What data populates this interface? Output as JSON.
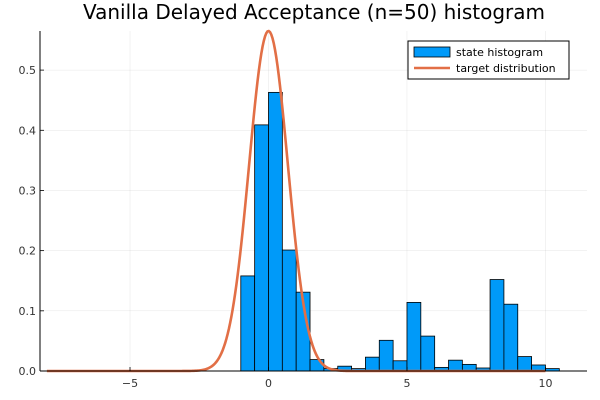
{
  "chart_data": {
    "type": "bar",
    "title": "Vanilla Delayed Acceptance (n=50) histogram",
    "xlabel": "",
    "ylabel": "",
    "xlim": [
      -8.25,
      11.5
    ],
    "ylim": [
      0,
      0.565
    ],
    "x_ticks": [
      -5,
      0,
      5,
      10
    ],
    "y_ticks": [
      0.0,
      0.1,
      0.2,
      0.3,
      0.4,
      0.5
    ],
    "x_tick_labels": [
      "−5",
      "0",
      "5",
      "10"
    ],
    "y_tick_labels": [
      "0.0",
      "0.1",
      "0.2",
      "0.3",
      "0.4",
      "0.5"
    ],
    "grid": true,
    "legend_position": "top-right",
    "series": [
      {
        "name": "state histogram",
        "type": "histogram",
        "color": "#009af9",
        "bin_width": 0.5,
        "bin_starts": [
          -1.0,
          -0.5,
          0.0,
          0.5,
          1.0,
          1.5,
          2.0,
          2.5,
          3.0,
          3.5,
          4.0,
          4.5,
          5.0,
          5.5,
          6.0,
          6.5,
          7.0,
          7.5,
          8.0,
          8.5,
          9.0,
          9.5,
          10.0
        ],
        "values": [
          0.158,
          0.409,
          0.463,
          0.201,
          0.131,
          0.019,
          0.004,
          0.008,
          0.004,
          0.023,
          0.051,
          0.017,
          0.114,
          0.058,
          0.006,
          0.018,
          0.011,
          0.005,
          0.152,
          0.111,
          0.024,
          0.01,
          0.004
        ]
      },
      {
        "name": "target distribution",
        "type": "line",
        "color": "#e26f46",
        "curve": "normal",
        "mean": 0,
        "std": 0.7,
        "peak": 0.565,
        "x_range": [
          -8,
          10
        ]
      }
    ]
  }
}
